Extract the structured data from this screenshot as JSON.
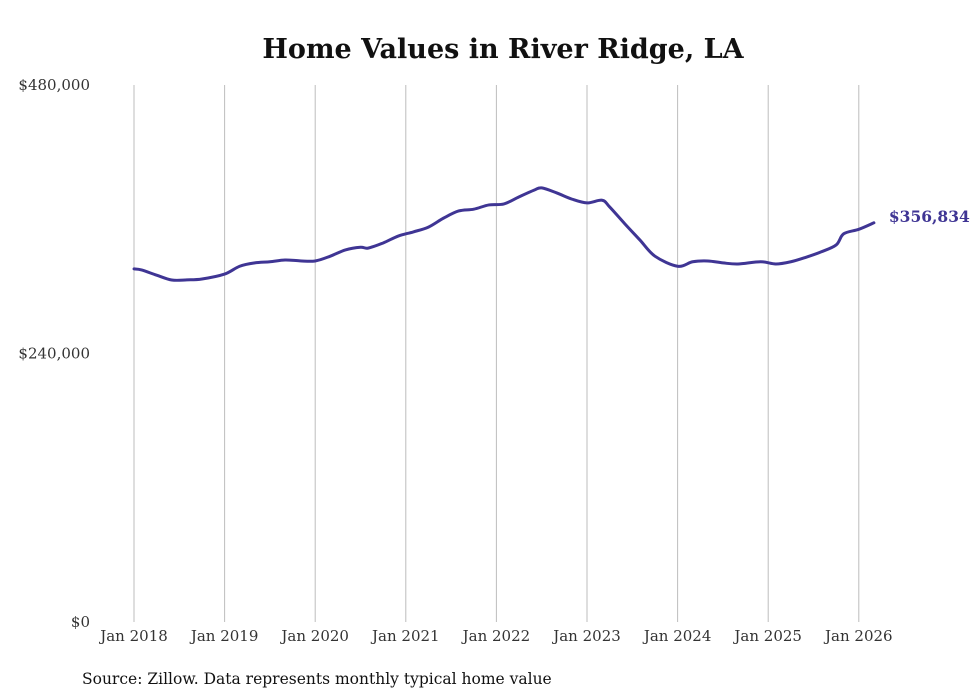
{
  "chart_data": {
    "type": "line",
    "title": "Home Values in River Ridge, LA",
    "source": "Source: Zillow. Data represents monthly typical home value",
    "xlabel": "",
    "ylabel": "",
    "ylim": [
      0,
      480000
    ],
    "y_ticks": [
      {
        "value": 0,
        "label": "$0"
      },
      {
        "value": 240000,
        "label": "$240,000"
      },
      {
        "value": 480000,
        "label": "$480,000"
      }
    ],
    "x_ticks": [
      {
        "date": "2018-01",
        "label": "Jan 2018"
      },
      {
        "date": "2019-01",
        "label": "Jan 2019"
      },
      {
        "date": "2020-01",
        "label": "Jan 2020"
      },
      {
        "date": "2021-01",
        "label": "Jan 2021"
      },
      {
        "date": "2022-01",
        "label": "Jan 2022"
      },
      {
        "date": "2023-01",
        "label": "Jan 2023"
      },
      {
        "date": "2024-01",
        "label": "Jan 2024"
      },
      {
        "date": "2025-01",
        "label": "Jan 2025"
      },
      {
        "date": "2026-01",
        "label": "Jan 2026"
      }
    ],
    "grid": "vertical",
    "line_color": "#3f3594",
    "series": [
      {
        "name": "Typical home value",
        "points": [
          {
            "date": "2018-01",
            "value": 315600
          },
          {
            "date": "2018-02",
            "value": 314700
          },
          {
            "date": "2018-04",
            "value": 310000
          },
          {
            "date": "2018-06",
            "value": 305700
          },
          {
            "date": "2018-08",
            "value": 305800
          },
          {
            "date": "2018-10",
            "value": 306600
          },
          {
            "date": "2019-01",
            "value": 311000
          },
          {
            "date": "2019-03",
            "value": 318000
          },
          {
            "date": "2019-05",
            "value": 321000
          },
          {
            "date": "2019-07",
            "value": 322000
          },
          {
            "date": "2019-09",
            "value": 323600
          },
          {
            "date": "2019-11",
            "value": 322800
          },
          {
            "date": "2020-01",
            "value": 322700
          },
          {
            "date": "2020-03",
            "value": 327000
          },
          {
            "date": "2020-05",
            "value": 332600
          },
          {
            "date": "2020-07",
            "value": 335000
          },
          {
            "date": "2020-08",
            "value": 334200
          },
          {
            "date": "2020-10",
            "value": 338800
          },
          {
            "date": "2020-12",
            "value": 345000
          },
          {
            "date": "2021-02",
            "value": 348700
          },
          {
            "date": "2021-04",
            "value": 353000
          },
          {
            "date": "2021-06",
            "value": 361000
          },
          {
            "date": "2021-08",
            "value": 367400
          },
          {
            "date": "2021-10",
            "value": 369000
          },
          {
            "date": "2021-12",
            "value": 372800
          },
          {
            "date": "2022-02",
            "value": 373700
          },
          {
            "date": "2022-04",
            "value": 380000
          },
          {
            "date": "2022-06",
            "value": 386000
          },
          {
            "date": "2022-07",
            "value": 388000
          },
          {
            "date": "2022-09",
            "value": 383500
          },
          {
            "date": "2022-11",
            "value": 378000
          },
          {
            "date": "2023-01",
            "value": 374600
          },
          {
            "date": "2023-03",
            "value": 377000
          },
          {
            "date": "2023-04",
            "value": 371000
          },
          {
            "date": "2023-06",
            "value": 356000
          },
          {
            "date": "2023-08",
            "value": 341500
          },
          {
            "date": "2023-10",
            "value": 327000
          },
          {
            "date": "2024-01",
            "value": 318000
          },
          {
            "date": "2024-03",
            "value": 322000
          },
          {
            "date": "2024-05",
            "value": 322700
          },
          {
            "date": "2024-07",
            "value": 321000
          },
          {
            "date": "2024-09",
            "value": 320000
          },
          {
            "date": "2024-12",
            "value": 322000
          },
          {
            "date": "2025-02",
            "value": 320000
          },
          {
            "date": "2025-04",
            "value": 322000
          },
          {
            "date": "2025-06",
            "value": 326000
          },
          {
            "date": "2025-08",
            "value": 330800
          },
          {
            "date": "2025-10",
            "value": 337000
          },
          {
            "date": "2025-11",
            "value": 347000
          },
          {
            "date": "2026-01",
            "value": 351000
          },
          {
            "date": "2026-03",
            "value": 356834
          }
        ]
      }
    ],
    "end_label": "$356,834"
  }
}
